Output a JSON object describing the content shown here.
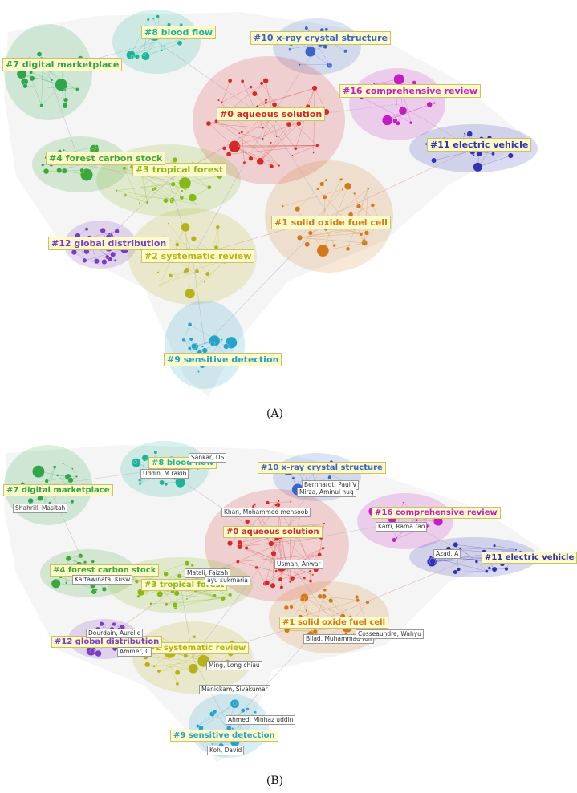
{
  "captions": {
    "a": "(A)",
    "b": "(B)"
  },
  "colors": {
    "c0": "#d62828",
    "c1": "#d07a1c",
    "c2": "#b8b21a",
    "c3": "#86b818",
    "c4": "#3aa83a",
    "c7": "#2fa64a",
    "c8": "#1fb39a",
    "c9": "#27a3c9",
    "c10": "#3b64c9",
    "c11": "#3030b8",
    "c12": "#7a3cc4",
    "c16": "#c21ec4"
  },
  "panel_a": {
    "clusters": [
      {
        "id": "c0",
        "label": "#0 aqueous solution"
      },
      {
        "id": "c1",
        "label": "#1 solid oxide fuel cell"
      },
      {
        "id": "c2",
        "label": "#2 systematic review"
      },
      {
        "id": "c3",
        "label": "#3 tropical forest"
      },
      {
        "id": "c4",
        "label": "#4 forest carbon stock"
      },
      {
        "id": "c7",
        "label": "#7 digital marketplace"
      },
      {
        "id": "c8",
        "label": "#8 blood flow"
      },
      {
        "id": "c9",
        "label": "#9 sensitive detection"
      },
      {
        "id": "c10",
        "label": "#10 x-ray crystal structure"
      },
      {
        "id": "c11",
        "label": "#11 electric vehicle"
      },
      {
        "id": "c12",
        "label": "#12 global distribution"
      },
      {
        "id": "c16",
        "label": "#16 comprehensive review"
      }
    ]
  },
  "panel_b": {
    "clusters": [
      {
        "id": "c0",
        "label": "#0 aqueous solution"
      },
      {
        "id": "c1",
        "label": "#1 solid oxide fuel cell"
      },
      {
        "id": "c2",
        "label": "#2 systematic review"
      },
      {
        "id": "c3",
        "label": "#3 tropical forest"
      },
      {
        "id": "c4",
        "label": "#4 forest carbon stock"
      },
      {
        "id": "c7",
        "label": "#7 digital marketplace"
      },
      {
        "id": "c8",
        "label": "#8 blood flow"
      },
      {
        "id": "c9",
        "label": "#9 sensitive detection"
      },
      {
        "id": "c10",
        "label": "#10 x-ray crystal structure"
      },
      {
        "id": "c11",
        "label": "#11 electric vehicle"
      },
      {
        "id": "c12",
        "label": "#12 global distribution"
      },
      {
        "id": "c16",
        "label": "#16 comprehensive review"
      }
    ],
    "authors": [
      "Sankar, DS",
      "Uddin, M rakib",
      "Shahrill, Masitah",
      "Bernhardt, Paul V",
      "Mirza, Aminul huq",
      "Khan, Mohammed mensoob",
      "Karri, Rama rao",
      "Azad, A",
      "Usman, Anwar",
      "Kartawinata, Kusw",
      "Matali, Faizah",
      "ayu sukmaria",
      "Dourdain, Aurélie",
      "Ammer, C",
      "Bilad, Muhammad roil",
      "Cosseaundre, Wahyu",
      "Ming, Long chiau",
      "Manickam, Sivakumar",
      "Ahmed, Minhaz uddin",
      "Koh, David"
    ]
  }
}
